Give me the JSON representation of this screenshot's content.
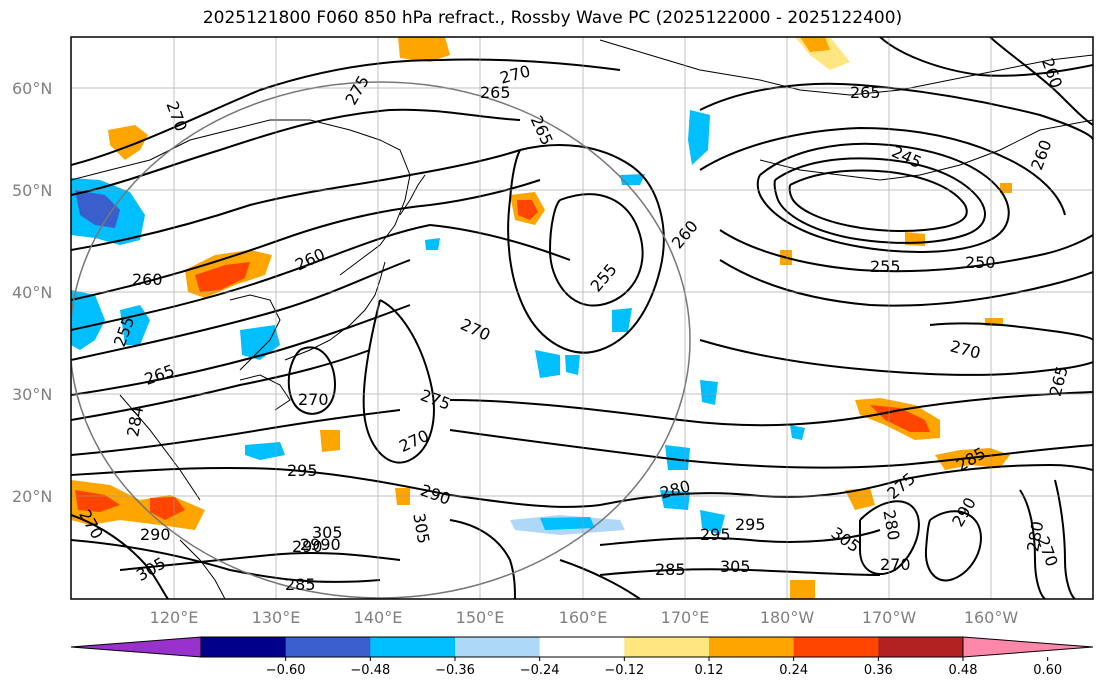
{
  "title": "2025121800 F060 850 hPa refract., Rossby Wave PC (2025122000 - 2025122400)",
  "lat_labels": [
    "60°N",
    "50°N",
    "40°N",
    "30°N",
    "20°N"
  ],
  "lon_labels": [
    "120°E",
    "130°E",
    "140°E",
    "150°E",
    "160°E",
    "170°E",
    "180°W",
    "170°W",
    "160°W"
  ],
  "colorbar": {
    "ticks": [
      "−0.60",
      "−0.48",
      "−0.36",
      "−0.24",
      "−0.12",
      "0.12",
      "0.24",
      "0.36",
      "0.48",
      "0.60"
    ],
    "colors": [
      "#9932cc",
      "#00008b",
      "#3a5fcd",
      "#00bfff",
      "#add8f7",
      "#ffffff",
      "#ffe680",
      "#ffa500",
      "#ff4500",
      "#b22222",
      "#ff88aa"
    ]
  },
  "contour_labels": [
    "275",
    "270",
    "265",
    "265",
    "270",
    "265",
    "260",
    "245",
    "260",
    "260",
    "260",
    "255",
    "260",
    "255",
    "250",
    "255",
    "265",
    "270",
    "265",
    "270",
    "275",
    "270",
    "270",
    "284",
    "295",
    "290",
    "305",
    "280",
    "275",
    "285",
    "270",
    "290",
    "305",
    "290",
    "305",
    "2990",
    "295",
    "285",
    "305",
    "285",
    "295",
    "280",
    "270",
    "305",
    "290",
    "280",
    "270"
  ],
  "colors": {
    "neg_light": "#add8f7",
    "neg_mid": "#00bfff",
    "neg_dark": "#3a5fcd",
    "pos_light": "#ffe680",
    "pos_mid": "#ffa500",
    "pos_dark": "#ff4500",
    "pos_deep": "#b22222"
  }
}
